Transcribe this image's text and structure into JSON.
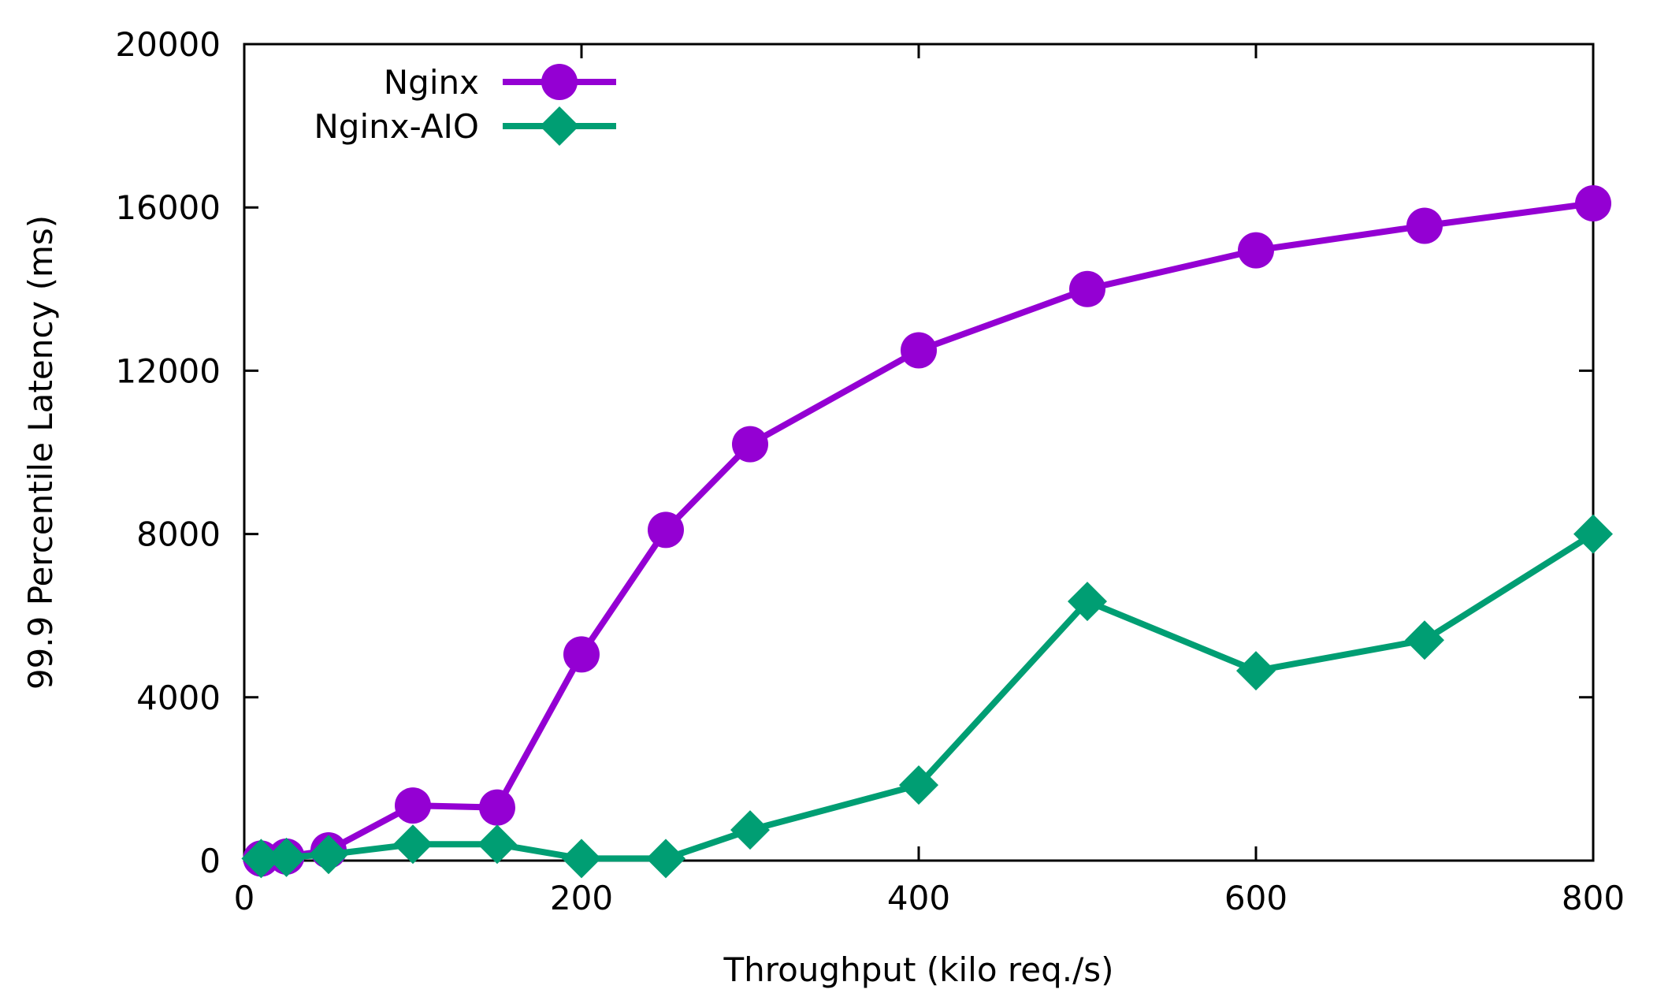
{
  "chart_data": {
    "type": "line",
    "title": "",
    "xlabel": "Throughput (kilo req./s)",
    "ylabel": "99.9 Percentile Latency (ms)",
    "xlim": [
      0,
      800
    ],
    "ylim": [
      0,
      20000
    ],
    "xticks": [
      0,
      200,
      400,
      600,
      800
    ],
    "yticks": [
      0,
      4000,
      8000,
      12000,
      16000,
      20000
    ],
    "legend_position": "top-left",
    "grid": false,
    "series": [
      {
        "name": "Nginx",
        "color": "#9400d3",
        "marker": "circle",
        "x": [
          10,
          25,
          50,
          100,
          150,
          200,
          250,
          300,
          400,
          500,
          600,
          700,
          800
        ],
        "y": [
          50,
          100,
          250,
          1350,
          1300,
          5050,
          8100,
          10200,
          12500,
          14000,
          14950,
          15550,
          16100
        ]
      },
      {
        "name": "Nginx-AIO",
        "color": "#009e73",
        "marker": "diamond",
        "x": [
          10,
          25,
          50,
          100,
          150,
          200,
          250,
          300,
          400,
          500,
          600,
          700,
          800
        ],
        "y": [
          50,
          80,
          150,
          400,
          400,
          50,
          50,
          750,
          1850,
          6350,
          4650,
          5400,
          8000
        ]
      }
    ]
  }
}
